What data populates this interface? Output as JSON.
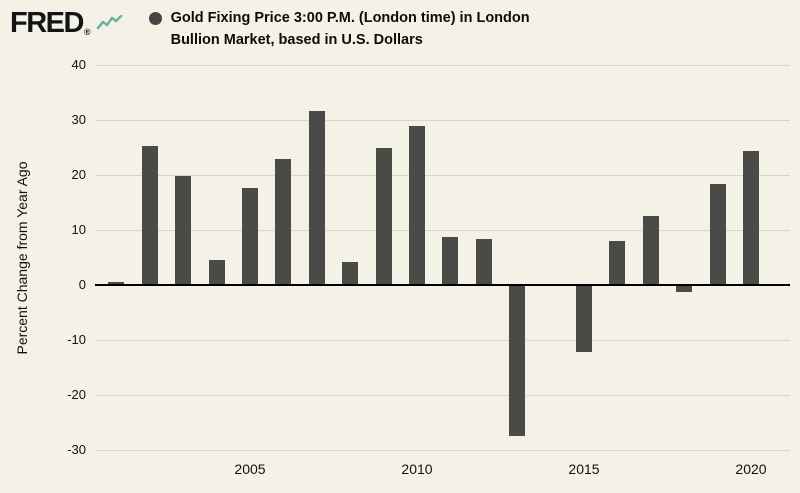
{
  "header": {
    "logo_text": "FRED",
    "registered_mark": "®",
    "series_title_line1": "Gold Fixing Price 3:00 P.M. (London time) in London",
    "series_title_line2": "Bullion Market, based in U.S. Dollars"
  },
  "chart_data": {
    "type": "bar",
    "title": "Gold Fixing Price 3:00 P.M. (London time) in London Bullion Market, based in U.S. Dollars",
    "ylabel": "Percent Change from Year Ago",
    "xlabel": "",
    "ylim": [
      -30,
      40
    ],
    "yticks": [
      40,
      30,
      20,
      10,
      0,
      -10,
      -20,
      -30
    ],
    "xticks": [
      2005,
      2010,
      2015,
      2020
    ],
    "grid": true,
    "legend_position": "top",
    "categories": [
      2001,
      2002,
      2003,
      2004,
      2005,
      2006,
      2007,
      2008,
      2009,
      2010,
      2011,
      2012,
      2013,
      2014,
      2015,
      2016,
      2017,
      2018,
      2019,
      2020
    ],
    "values": [
      0.5,
      25.3,
      19.8,
      4.6,
      17.7,
      23.0,
      31.7,
      4.2,
      24.9,
      28.9,
      8.7,
      8.3,
      -27.5,
      0.1,
      -12.2,
      8.0,
      12.6,
      -1.3,
      18.4,
      24.3
    ],
    "bar_color": "#4a4a46"
  },
  "colors": {
    "background": "#f4f1e7",
    "bar": "#4a4a46",
    "gridline": "#d9d5c9",
    "zero_line": "#000000",
    "legend_dot": "#454543",
    "logo_sparkline": "#6fb3a4",
    "text": "#111111"
  }
}
